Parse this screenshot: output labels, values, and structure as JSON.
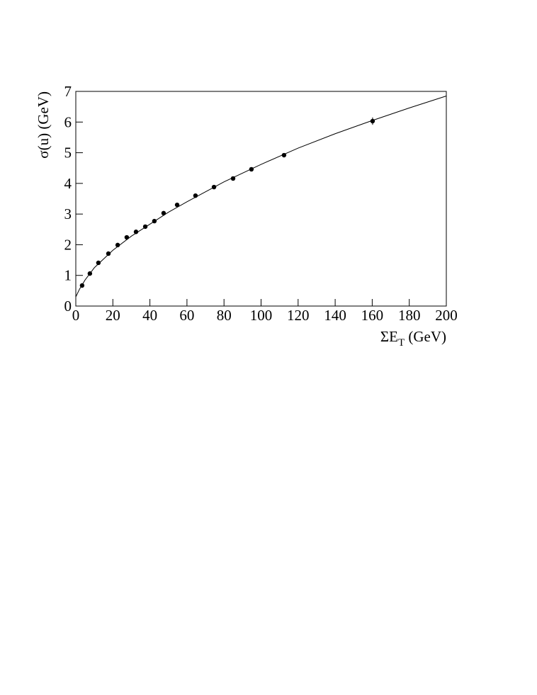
{
  "chart_data": {
    "type": "scatter",
    "ylabel": "σ(u) (GeV)",
    "xlabel": [
      "ΣE",
      "T",
      " (GeV)"
    ],
    "xlim": [
      0,
      200
    ],
    "xticks": [
      0,
      20,
      40,
      60,
      80,
      100,
      120,
      140,
      160,
      180,
      200
    ],
    "ylim": [
      0,
      7
    ],
    "yticks": [
      0,
      1,
      2,
      3,
      4,
      5,
      6,
      7
    ],
    "color": "#000000",
    "series": [
      {
        "x": [
          3.4,
          7.6,
          12.2,
          17.6,
          22.6,
          27.5,
          32.5,
          37.5,
          42.4,
          47.4,
          54.7,
          64.6,
          74.6,
          84.9,
          94.8,
          112.4,
          160.2
        ],
        "values": [
          0.67,
          1.06,
          1.41,
          1.71,
          1.99,
          2.24,
          2.42,
          2.59,
          2.77,
          3.03,
          3.3,
          3.6,
          3.88,
          4.16,
          4.46,
          4.92,
          6.03
        ],
        "errors": [
          0.02,
          0.02,
          0.02,
          0.02,
          0.02,
          0.02,
          0.02,
          0.02,
          0.02,
          0.02,
          0.02,
          0.03,
          0.03,
          0.03,
          0.04,
          0.05,
          0.12
        ]
      }
    ],
    "fit": {
      "x": [
        0,
        2,
        5,
        10,
        20,
        30,
        40,
        50,
        60,
        80,
        100,
        120,
        140,
        160,
        180,
        200
      ],
      "values": [
        0.3,
        0.55,
        0.85,
        1.25,
        1.82,
        2.28,
        2.67,
        3.06,
        3.4,
        4.05,
        4.62,
        5.15,
        5.62,
        6.05,
        6.46,
        6.85
      ]
    }
  }
}
